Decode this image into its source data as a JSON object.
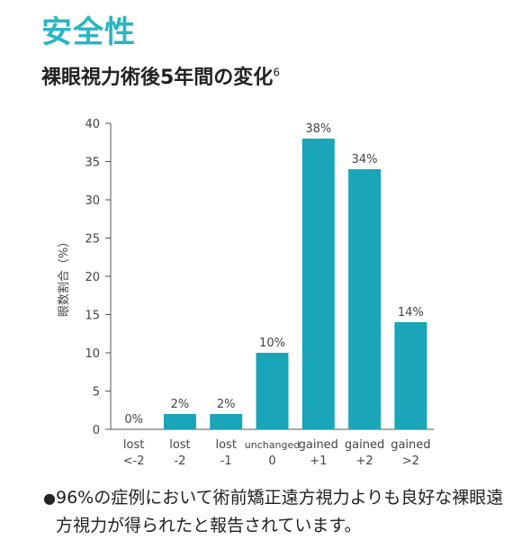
{
  "header": {
    "title": "安全性",
    "subtitle": "裸眼視力術後5年間の変化",
    "subtitle_ref": "6"
  },
  "colors": {
    "accent": "#29b5c3",
    "bar": "#1aa5b8"
  },
  "chart_data": {
    "type": "bar",
    "ylabel": "眼数割合（%）",
    "xlabel": "",
    "ylim": [
      0,
      40
    ],
    "yticks": [
      0,
      5,
      10,
      15,
      20,
      25,
      30,
      35,
      40
    ],
    "categories": [
      [
        "lost",
        "<-2"
      ],
      [
        "lost",
        "-2"
      ],
      [
        "lost",
        "-1"
      ],
      [
        "unchanged",
        "0"
      ],
      [
        "gained",
        "+1"
      ],
      [
        "gained",
        "+2"
      ],
      [
        "gained",
        ">2"
      ]
    ],
    "values": [
      0,
      2,
      2,
      10,
      38,
      34,
      14
    ],
    "data_labels": [
      "0%",
      "2%",
      "2%",
      "10%",
      "38%",
      "34%",
      "14%"
    ],
    "grid": false
  },
  "note": {
    "bullet": "●",
    "text": "96%の症例において術前矯正遠方視力よりも良好な裸眼遠方視力が得られたと報告されています。"
  }
}
